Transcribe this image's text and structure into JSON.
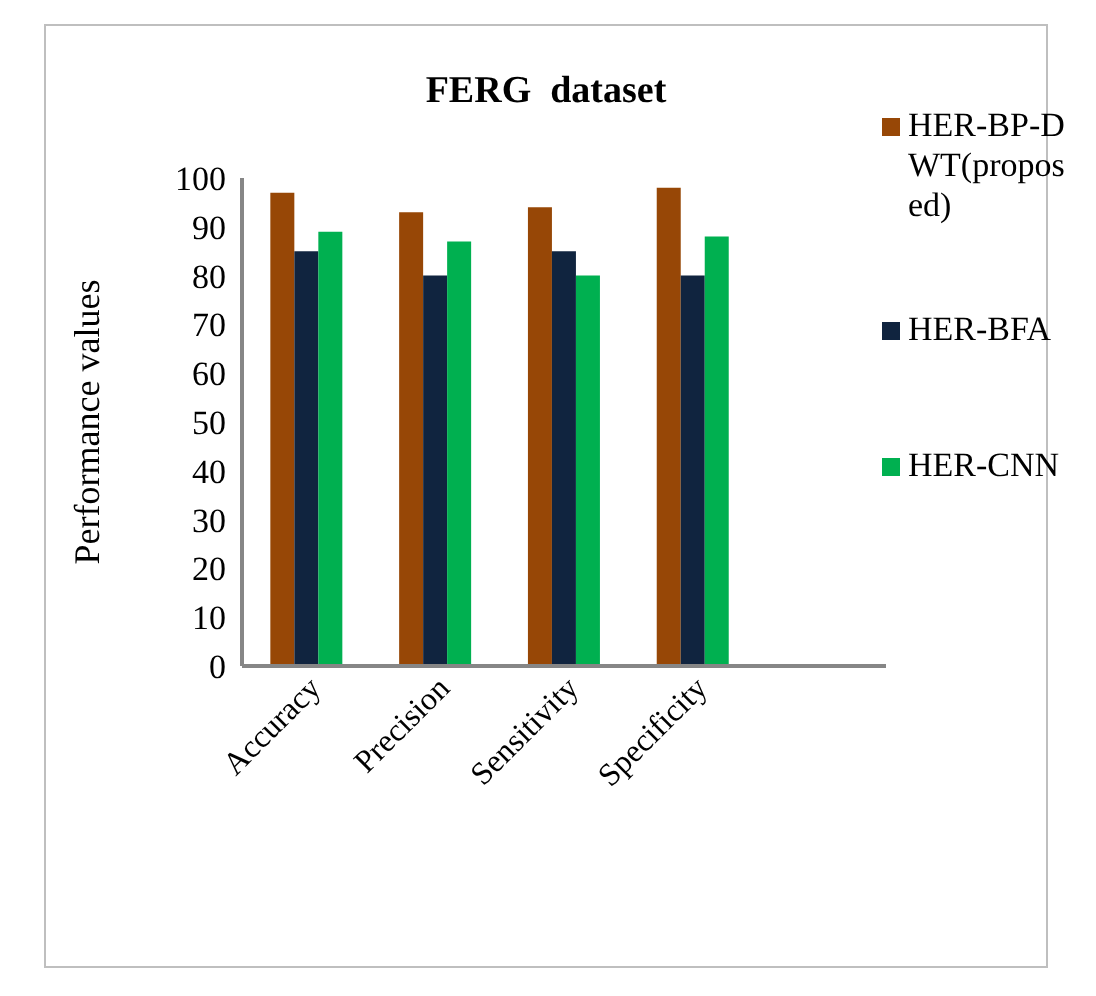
{
  "chart_data": {
    "type": "bar",
    "title": "FERG  dataset",
    "ylabel": "Performance    values",
    "categories": [
      "Accuracy",
      "Precision",
      "Sensitivity",
      "Specificity",
      null
    ],
    "series": [
      {
        "name": "HER-BP-DWT(proposed)",
        "color": "#974706",
        "values": [
          97,
          93,
          94,
          98,
          null
        ]
      },
      {
        "name": "HER-BFA",
        "color": "#10243f",
        "values": [
          85,
          80,
          85,
          80,
          null
        ]
      },
      {
        "name": "HER-CNN",
        "color": "#00b050",
        "values": [
          89,
          87,
          80,
          88,
          null
        ]
      }
    ],
    "ylim": [
      0,
      100
    ],
    "yticks": [
      0,
      10,
      20,
      30,
      40,
      50,
      60,
      70,
      80,
      90,
      100
    ],
    "grid": false,
    "legend": "right"
  }
}
